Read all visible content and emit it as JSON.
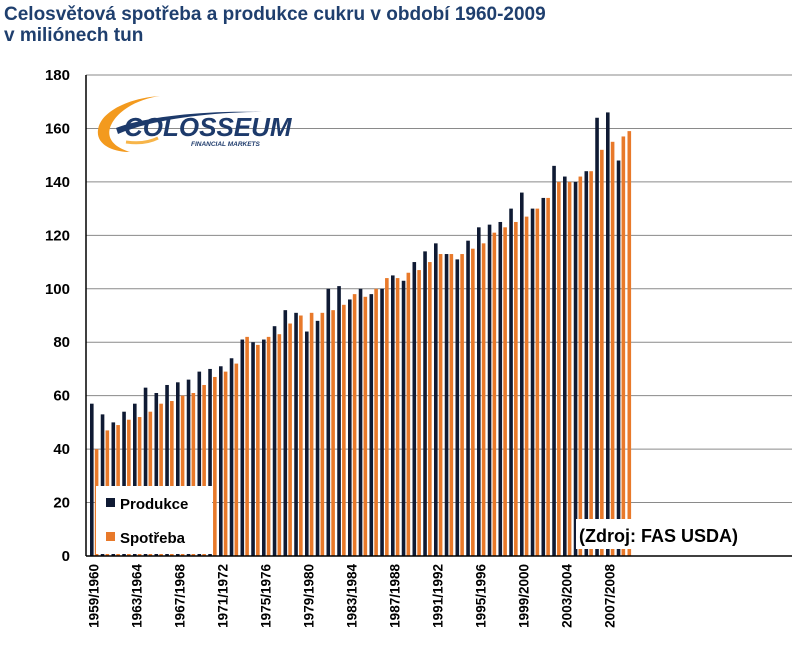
{
  "chart_data": {
    "type": "bar",
    "title": "Celosvětová spotřeba a produkce cukru v období 1960-2009",
    "subtitle": "v miliónech tun",
    "xlabel": "",
    "ylabel": "",
    "ylim": [
      0,
      180
    ],
    "yticks": [
      0,
      20,
      40,
      60,
      80,
      100,
      120,
      140,
      160,
      180
    ],
    "grid": true,
    "legend_position": "bottom-left",
    "categories": [
      "1959/1960",
      "1960/1961",
      "1961/1962",
      "1962/1963",
      "1963/1964",
      "1964/1965",
      "1965/1966",
      "1966/1967",
      "1967/1968",
      "1968/1969",
      "1969/1970",
      "1970/1971",
      "1971/1972",
      "1972/1973",
      "1973/1974",
      "1974/1975",
      "1975/1976",
      "1976/1977",
      "1977/1978",
      "1978/1979",
      "1979/1980",
      "1980/1981",
      "1981/1982",
      "1982/1983",
      "1983/1984",
      "1984/1985",
      "1985/1986",
      "1986/1987",
      "1987/1988",
      "1988/1989",
      "1989/1990",
      "1990/1991",
      "1991/1992",
      "1992/1993",
      "1993/1994",
      "1994/1995",
      "1995/1996",
      "1996/1997",
      "1997/1998",
      "1998/1999",
      "1999/2000",
      "2000/2001",
      "2001/2002",
      "2002/2003",
      "2003/2004",
      "2004/2005",
      "2005/2006",
      "2006/2007",
      "2007/2008",
      "2008/2009"
    ],
    "shown_tick_labels": [
      "1959/1960",
      "1963/1964",
      "1967/1968",
      "1971/1972",
      "1975/1976",
      "1979/1980",
      "1983/1984",
      "1987/1988",
      "1991/1992",
      "1995/1996",
      "1999/2000",
      "2003/2004",
      "2007/2008"
    ],
    "series": [
      {
        "name": "Produkce",
        "color": "#0f1a33",
        "values": [
          57,
          53,
          50,
          54,
          57,
          63,
          61,
          64,
          65,
          66,
          69,
          70,
          71,
          74,
          81,
          80,
          81,
          86,
          92,
          91,
          84,
          88,
          100,
          101,
          96,
          100,
          98,
          100,
          105,
          103,
          110,
          114,
          117,
          113,
          111,
          118,
          123,
          124,
          125,
          130,
          136,
          130,
          134,
          146,
          142,
          140,
          144,
          164,
          166,
          148
        ]
      },
      {
        "name": "Spotřeba",
        "color": "#e8792a",
        "values": [
          40,
          47,
          49,
          51,
          52,
          54,
          57,
          58,
          60,
          61,
          64,
          67,
          69,
          72,
          82,
          79,
          82,
          83,
          87,
          90,
          91,
          91,
          92,
          94,
          98,
          97,
          100,
          104,
          104,
          106,
          107,
          110,
          113,
          113,
          113,
          115,
          117,
          121,
          123,
          125,
          127,
          130,
          134,
          140,
          140,
          142,
          144,
          152,
          155,
          157
        ]
      }
    ],
    "series_tail": {
      "value": 159,
      "color": "#e8792a"
    }
  },
  "legend": {
    "items": [
      {
        "label": "Produkce",
        "color": "#0f1a33"
      },
      {
        "label": "Spotřeba",
        "color": "#e8792a"
      }
    ]
  },
  "logo": {
    "name": "COLOSSEUM",
    "tagline": "FINANCIAL MARKETS",
    "icon": "colosseum-swoosh-logo"
  },
  "source_note": "(Zdroj: FAS USDA)"
}
